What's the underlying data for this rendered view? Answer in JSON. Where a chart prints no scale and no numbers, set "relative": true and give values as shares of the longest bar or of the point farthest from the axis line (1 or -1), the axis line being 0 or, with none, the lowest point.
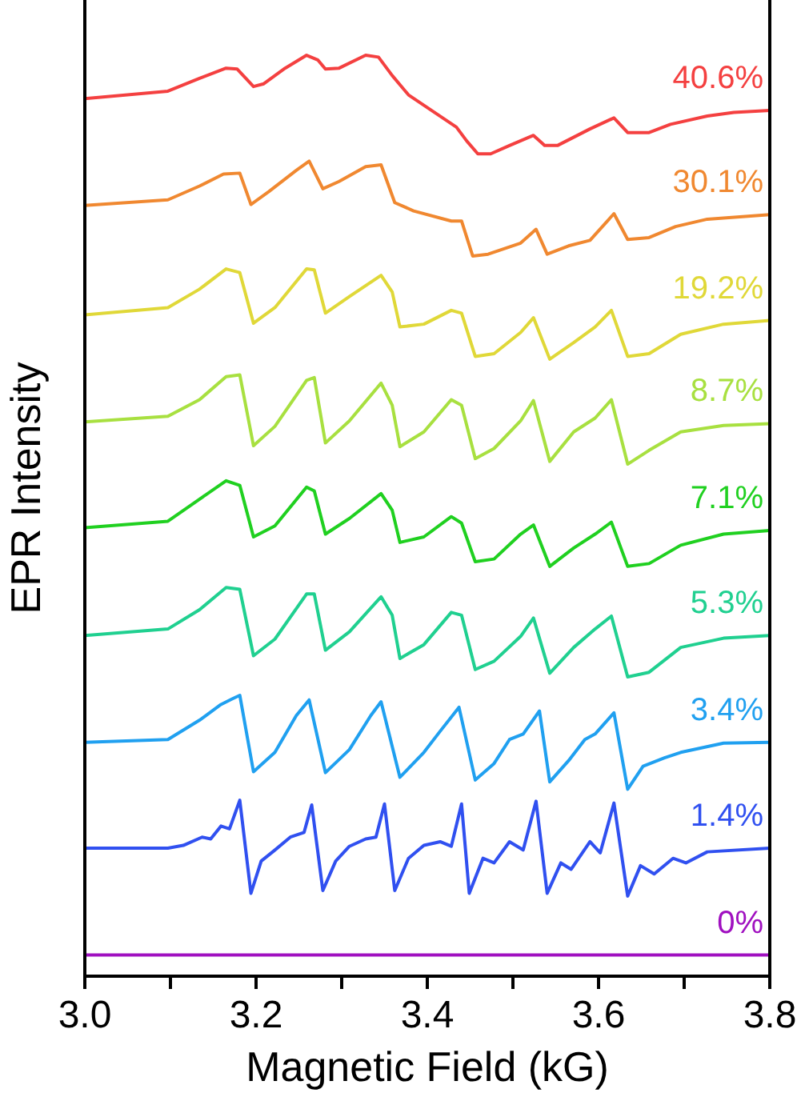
{
  "chart_data": {
    "type": "line",
    "xlabel": "Magnetic Field (kG)",
    "ylabel": "EPR Intensity",
    "relative": true,
    "xlim": [
      3.0,
      3.8
    ],
    "xticks": [
      {
        "value": 3.0,
        "label": "3.0"
      },
      {
        "value": 3.1,
        "label": null
      },
      {
        "value": 3.2,
        "label": "3.2"
      },
      {
        "value": 3.3,
        "label": null
      },
      {
        "value": 3.4,
        "label": "3.4"
      },
      {
        "value": 3.5,
        "label": null
      },
      {
        "value": 3.6,
        "label": "3.6"
      },
      {
        "value": 3.7,
        "label": null
      },
      {
        "value": 3.8,
        "label": "3.8"
      }
    ],
    "series": [
      {
        "name": "40.6%",
        "color": "#f44040",
        "x": [
          3.0,
          3.097,
          3.134,
          3.165,
          3.178,
          3.197,
          3.209,
          3.234,
          3.259,
          3.272,
          3.281,
          3.297,
          3.328,
          3.343,
          3.359,
          3.378,
          3.434,
          3.446,
          3.459,
          3.474,
          3.496,
          3.524,
          3.537,
          3.552,
          3.59,
          3.618,
          3.634,
          3.659,
          3.684,
          3.727,
          3.758,
          3.8
        ],
        "values": [
          0.953,
          0.961,
          0.975,
          0.986,
          0.985,
          0.966,
          0.969,
          0.986,
          1.0,
          0.995,
          0.985,
          0.986,
          1.0,
          0.998,
          0.978,
          0.957,
          0.922,
          0.907,
          0.893,
          0.893,
          0.902,
          0.913,
          0.902,
          0.902,
          0.92,
          0.932,
          0.916,
          0.916,
          0.925,
          0.934,
          0.938,
          0.94
        ]
      },
      {
        "name": "30.1%",
        "color": "#f08830",
        "x": [
          3.0,
          3.097,
          3.134,
          3.162,
          3.181,
          3.194,
          3.215,
          3.247,
          3.262,
          3.278,
          3.297,
          3.328,
          3.346,
          3.362,
          3.384,
          3.428,
          3.44,
          3.453,
          3.471,
          3.509,
          3.527,
          3.54,
          3.565,
          3.59,
          3.618,
          3.634,
          3.659,
          3.69,
          3.727,
          3.8
        ],
        "values": [
          0.837,
          0.843,
          0.858,
          0.871,
          0.872,
          0.838,
          0.852,
          0.875,
          0.885,
          0.855,
          0.863,
          0.879,
          0.881,
          0.84,
          0.831,
          0.82,
          0.82,
          0.782,
          0.784,
          0.796,
          0.811,
          0.784,
          0.793,
          0.799,
          0.828,
          0.8,
          0.802,
          0.814,
          0.822,
          0.827
        ]
      },
      {
        "name": "19.2%",
        "color": "#e0d838",
        "x": [
          3.0,
          3.097,
          3.134,
          3.165,
          3.181,
          3.197,
          3.222,
          3.259,
          3.268,
          3.281,
          3.309,
          3.346,
          3.359,
          3.368,
          3.396,
          3.428,
          3.44,
          3.456,
          3.478,
          3.509,
          3.524,
          3.543,
          3.571,
          3.596,
          3.615,
          3.634,
          3.659,
          3.696,
          3.746,
          3.8
        ],
        "values": [
          0.718,
          0.726,
          0.746,
          0.768,
          0.764,
          0.709,
          0.726,
          0.768,
          0.767,
          0.72,
          0.738,
          0.761,
          0.743,
          0.705,
          0.708,
          0.723,
          0.72,
          0.673,
          0.676,
          0.699,
          0.715,
          0.67,
          0.688,
          0.705,
          0.723,
          0.673,
          0.676,
          0.697,
          0.708,
          0.712
        ]
      },
      {
        "name": "8.7%",
        "color": "#a8e040",
        "x": [
          3.0,
          3.097,
          3.134,
          3.165,
          3.181,
          3.197,
          3.222,
          3.259,
          3.268,
          3.281,
          3.309,
          3.346,
          3.359,
          3.368,
          3.396,
          3.428,
          3.44,
          3.456,
          3.478,
          3.509,
          3.524,
          3.543,
          3.571,
          3.596,
          3.615,
          3.634,
          3.659,
          3.696,
          3.746,
          3.8
        ],
        "values": [
          0.602,
          0.608,
          0.626,
          0.651,
          0.653,
          0.576,
          0.597,
          0.647,
          0.65,
          0.579,
          0.603,
          0.644,
          0.62,
          0.575,
          0.591,
          0.626,
          0.62,
          0.562,
          0.573,
          0.603,
          0.625,
          0.559,
          0.591,
          0.606,
          0.626,
          0.556,
          0.571,
          0.591,
          0.598,
          0.6
        ]
      },
      {
        "name": "7.1%",
        "color": "#20d020",
        "x": [
          3.0,
          3.097,
          3.134,
          3.165,
          3.181,
          3.197,
          3.222,
          3.259,
          3.268,
          3.281,
          3.309,
          3.346,
          3.359,
          3.368,
          3.396,
          3.428,
          3.44,
          3.456,
          3.478,
          3.509,
          3.524,
          3.543,
          3.571,
          3.596,
          3.615,
          3.634,
          3.659,
          3.696,
          3.746,
          3.8
        ],
        "values": [
          0.487,
          0.494,
          0.518,
          0.538,
          0.533,
          0.477,
          0.489,
          0.531,
          0.527,
          0.48,
          0.497,
          0.524,
          0.506,
          0.471,
          0.477,
          0.499,
          0.492,
          0.45,
          0.453,
          0.48,
          0.49,
          0.445,
          0.465,
          0.48,
          0.493,
          0.445,
          0.448,
          0.468,
          0.48,
          0.484
        ]
      },
      {
        "name": "5.3%",
        "color": "#20d090",
        "x": [
          3.0,
          3.097,
          3.134,
          3.165,
          3.181,
          3.197,
          3.222,
          3.259,
          3.268,
          3.281,
          3.309,
          3.346,
          3.359,
          3.368,
          3.396,
          3.428,
          3.44,
          3.456,
          3.478,
          3.509,
          3.524,
          3.543,
          3.571,
          3.596,
          3.615,
          3.634,
          3.659,
          3.696,
          3.746,
          3.8
        ],
        "values": [
          0.37,
          0.377,
          0.398,
          0.422,
          0.42,
          0.348,
          0.366,
          0.415,
          0.415,
          0.354,
          0.374,
          0.412,
          0.392,
          0.345,
          0.36,
          0.395,
          0.392,
          0.333,
          0.342,
          0.369,
          0.389,
          0.329,
          0.357,
          0.377,
          0.391,
          0.325,
          0.33,
          0.357,
          0.367,
          0.37
        ]
      },
      {
        "name": "3.4%",
        "color": "#20a0f0",
        "x": [
          3.0,
          3.097,
          3.134,
          3.159,
          3.172,
          3.181,
          3.197,
          3.222,
          3.247,
          3.262,
          3.281,
          3.309,
          3.334,
          3.346,
          3.368,
          3.396,
          3.415,
          3.437,
          3.456,
          3.478,
          3.496,
          3.512,
          3.531,
          3.543,
          3.565,
          3.584,
          3.596,
          3.618,
          3.634,
          3.652,
          3.677,
          3.696,
          3.746,
          3.8
        ],
        "values": [
          0.254,
          0.257,
          0.278,
          0.295,
          0.301,
          0.305,
          0.222,
          0.243,
          0.283,
          0.3,
          0.221,
          0.246,
          0.283,
          0.298,
          0.216,
          0.243,
          0.266,
          0.292,
          0.213,
          0.231,
          0.257,
          0.263,
          0.288,
          0.211,
          0.234,
          0.257,
          0.263,
          0.286,
          0.203,
          0.228,
          0.237,
          0.243,
          0.253,
          0.254
        ]
      },
      {
        "name": "1.4%",
        "color": "#3050f0",
        "x": [
          3.0,
          3.097,
          3.115,
          3.137,
          3.147,
          3.159,
          3.169,
          3.181,
          3.194,
          3.206,
          3.222,
          3.24,
          3.256,
          3.265,
          3.278,
          3.293,
          3.309,
          3.328,
          3.34,
          3.35,
          3.362,
          3.378,
          3.396,
          3.415,
          3.428,
          3.44,
          3.449,
          3.465,
          3.478,
          3.496,
          3.512,
          3.527,
          3.54,
          3.556,
          3.568,
          3.59,
          3.602,
          3.618,
          3.634,
          3.649,
          3.665,
          3.687,
          3.702,
          3.727,
          3.8
        ],
        "values": [
          0.139,
          0.139,
          0.142,
          0.151,
          0.149,
          0.163,
          0.16,
          0.191,
          0.09,
          0.125,
          0.137,
          0.151,
          0.156,
          0.186,
          0.093,
          0.125,
          0.141,
          0.149,
          0.151,
          0.187,
          0.093,
          0.128,
          0.142,
          0.146,
          0.141,
          0.187,
          0.09,
          0.128,
          0.123,
          0.146,
          0.137,
          0.19,
          0.09,
          0.123,
          0.116,
          0.146,
          0.134,
          0.188,
          0.087,
          0.12,
          0.111,
          0.128,
          0.123,
          0.135,
          0.139
        ]
      },
      {
        "name": "0%",
        "color": "#a010c0",
        "x": [
          3.0,
          3.8
        ],
        "values": [
          0.023,
          0.023
        ]
      }
    ]
  }
}
